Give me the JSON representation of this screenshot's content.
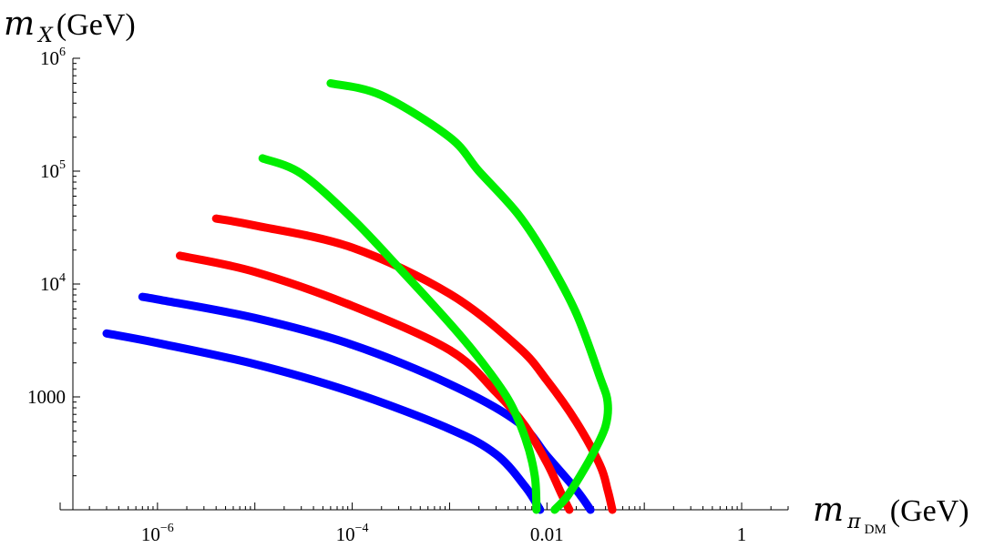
{
  "chart_data": {
    "type": "line",
    "x_scale": "log",
    "y_scale": "log",
    "xlim": [
      1e-07,
      3
    ],
    "ylim": [
      100,
      1000000
    ],
    "x_ticks": [
      {
        "value": 1e-06,
        "base": "10",
        "exp": "−6"
      },
      {
        "value": 0.0001,
        "base": "10",
        "exp": "−4"
      },
      {
        "value": 0.01,
        "base": "0.01",
        "exp": ""
      },
      {
        "value": 1,
        "base": "1",
        "exp": ""
      }
    ],
    "y_ticks": [
      {
        "value": 1000,
        "base": "1000",
        "exp": ""
      },
      {
        "value": 10000,
        "base": "10",
        "exp": "4"
      },
      {
        "value": 100000,
        "base": "10",
        "exp": "5"
      },
      {
        "value": 1000000,
        "base": "10",
        "exp": "6"
      }
    ],
    "xlabel": {
      "main": "m",
      "sub": "π",
      "subsub": "DM",
      "unit": "(GeV)"
    },
    "ylabel": {
      "main": "m",
      "sub": "X",
      "unit": "(GeV)"
    },
    "grid": false,
    "legend": "none",
    "series": [
      {
        "color": "#0000ff",
        "points": [
          [
            3e-07,
            3650
          ],
          [
            1e-06,
            3000
          ],
          [
            1e-05,
            1950
          ],
          [
            0.0001,
            1100
          ],
          [
            0.001,
            520
          ],
          [
            0.003,
            310
          ],
          [
            0.006,
            160
          ],
          [
            0.0085,
            100
          ]
        ]
      },
      {
        "color": "#0000ff",
        "points": [
          [
            7e-07,
            7700
          ],
          [
            1e-06,
            7300
          ],
          [
            1e-05,
            5000
          ],
          [
            0.0001,
            2900
          ],
          [
            0.001,
            1300
          ],
          [
            0.005,
            600
          ],
          [
            0.01,
            300
          ],
          [
            0.02,
            150
          ],
          [
            0.028,
            100
          ]
        ]
      },
      {
        "color": "#ff0000",
        "points": [
          [
            1.7e-06,
            17800
          ],
          [
            1e-05,
            12800
          ],
          [
            0.0001,
            6400
          ],
          [
            0.001,
            2600
          ],
          [
            0.003,
            1100
          ],
          [
            0.006,
            550
          ],
          [
            0.01,
            260
          ],
          [
            0.014,
            140
          ],
          [
            0.017,
            100
          ]
        ]
      },
      {
        "color": "#ff0000",
        "points": [
          [
            4e-06,
            38000
          ],
          [
            1e-05,
            33000
          ],
          [
            0.0001,
            21000
          ],
          [
            0.001,
            8200
          ],
          [
            0.005,
            2800
          ],
          [
            0.01,
            1400
          ],
          [
            0.02,
            600
          ],
          [
            0.035,
            250
          ],
          [
            0.042,
            150
          ],
          [
            0.047,
            100
          ]
        ]
      },
      {
        "color": "#00ee00",
        "points": [
          [
            1.2e-05,
            130000
          ],
          [
            3e-05,
            95000
          ],
          [
            0.0001,
            38000
          ],
          [
            0.0003,
            14000
          ],
          [
            0.001,
            4500
          ],
          [
            0.002,
            2200
          ],
          [
            0.004,
            950
          ],
          [
            0.006,
            430
          ],
          [
            0.0075,
            200
          ],
          [
            0.0078,
            100
          ]
        ]
      },
      {
        "color": "#00ee00",
        "points": [
          [
            6e-05,
            600000
          ],
          [
            0.0002,
            470000
          ],
          [
            0.001,
            200000
          ],
          [
            0.002,
            100000
          ],
          [
            0.005,
            42000
          ],
          [
            0.01,
            17000
          ],
          [
            0.02,
            5500
          ],
          [
            0.035,
            1500
          ],
          [
            0.042,
            900
          ],
          [
            0.04,
            550
          ],
          [
            0.03,
            320
          ],
          [
            0.022,
            200
          ],
          [
            0.016,
            130
          ],
          [
            0.012,
            100
          ]
        ]
      }
    ]
  }
}
